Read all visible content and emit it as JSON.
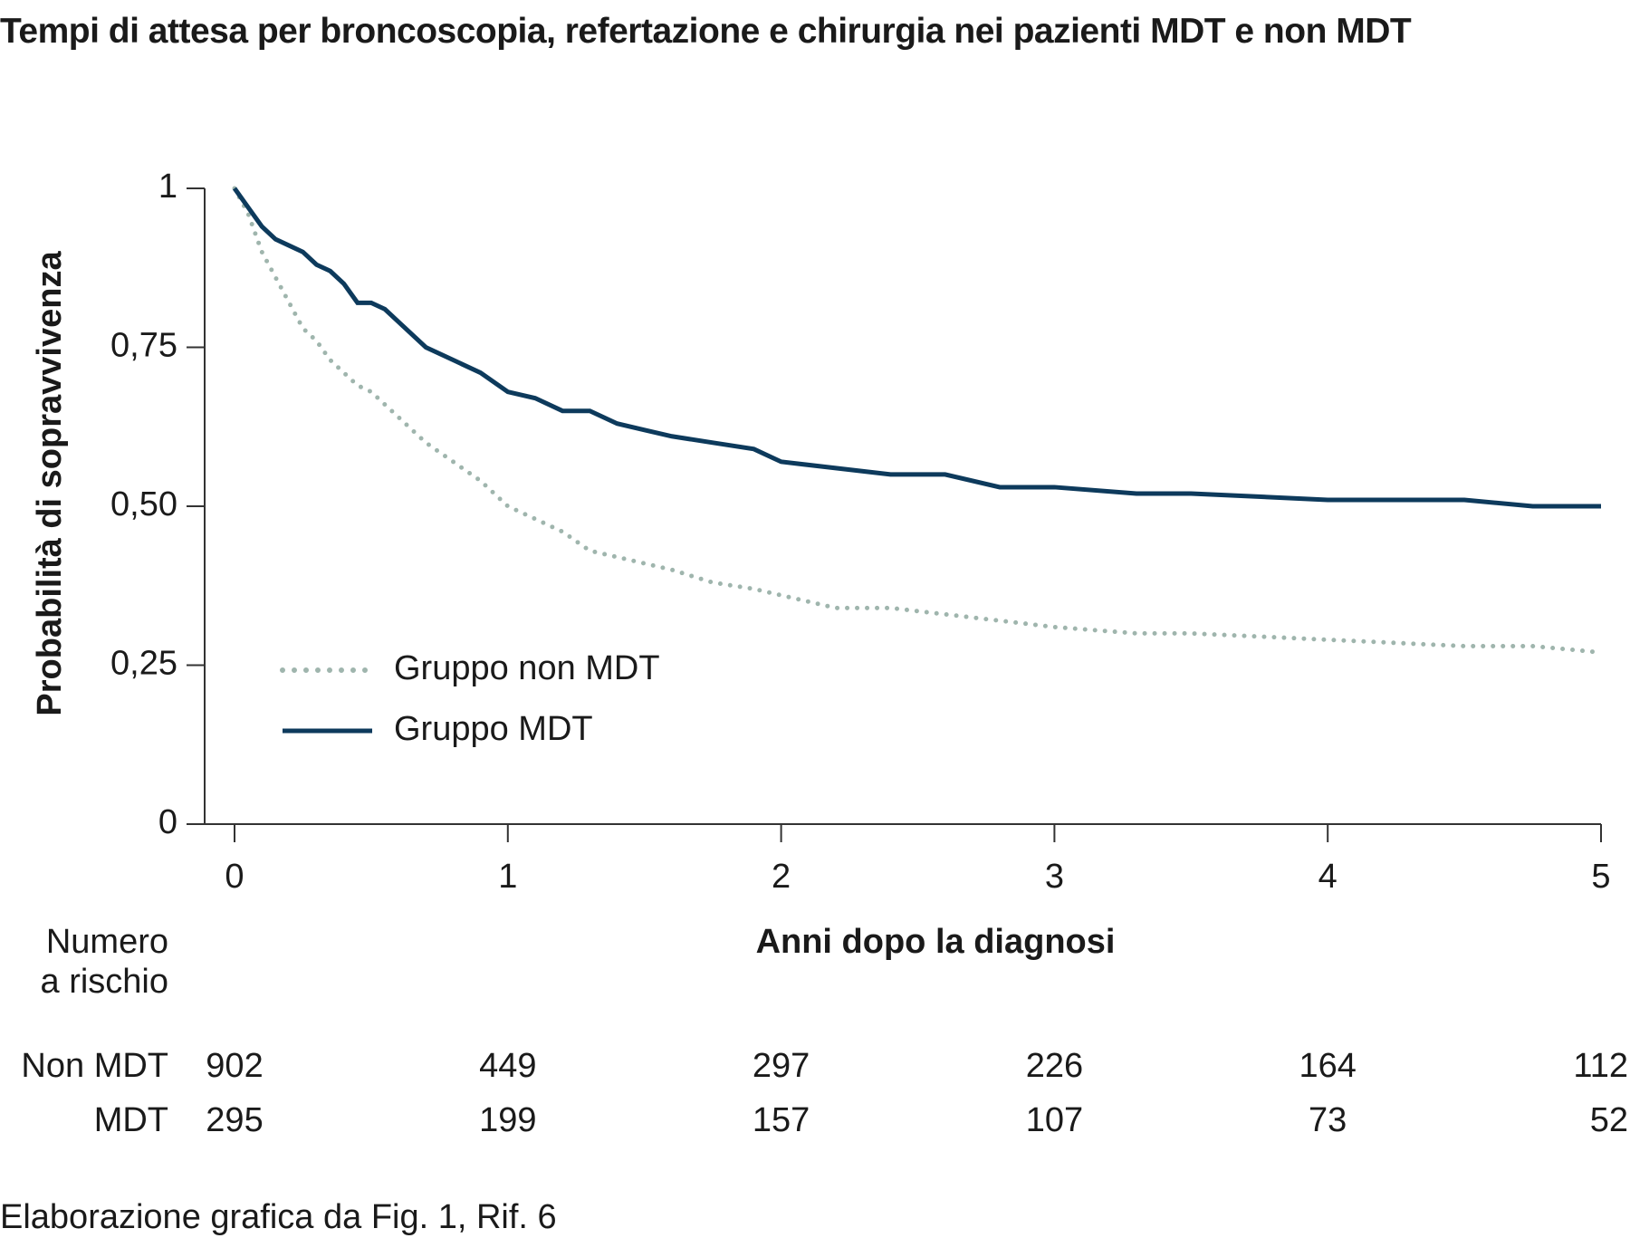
{
  "chart_data": {
    "type": "line",
    "title": "Tempi di attesa per broncoscopia, refertazione e chirurgia nei pazienti MDT e non MDT",
    "x_label": "Anni dopo la diagnosi",
    "y_label": "Probabilità di sopravvivenza",
    "x": [
      0,
      0.05,
      0.1,
      0.15,
      0.2,
      0.25,
      0.3,
      0.35,
      0.4,
      0.45,
      0.5,
      0.55,
      0.6,
      0.7,
      0.8,
      0.9,
      1.0,
      1.1,
      1.2,
      1.3,
      1.4,
      1.5,
      1.6,
      1.75,
      1.9,
      2.0,
      2.2,
      2.4,
      2.6,
      2.8,
      3.0,
      3.3,
      3.5,
      4.0,
      4.5,
      4.75,
      5.0
    ],
    "series": [
      {
        "name": "Gruppo non MDT",
        "color": "#9fb5ad",
        "style": "dotted",
        "values": [
          1.0,
          0.96,
          0.9,
          0.86,
          0.82,
          0.78,
          0.76,
          0.73,
          0.71,
          0.69,
          0.68,
          0.66,
          0.64,
          0.6,
          0.57,
          0.54,
          0.5,
          0.48,
          0.46,
          0.43,
          0.42,
          0.41,
          0.4,
          0.38,
          0.37,
          0.36,
          0.34,
          0.34,
          0.33,
          0.32,
          0.31,
          0.3,
          0.3,
          0.29,
          0.28,
          0.28,
          0.27
        ]
      },
      {
        "name": "Gruppo MDT",
        "color": "#0d3a5c",
        "style": "solid",
        "values": [
          1.0,
          0.97,
          0.94,
          0.92,
          0.91,
          0.9,
          0.88,
          0.87,
          0.85,
          0.82,
          0.82,
          0.81,
          0.79,
          0.75,
          0.73,
          0.71,
          0.68,
          0.67,
          0.65,
          0.65,
          0.63,
          0.62,
          0.61,
          0.6,
          0.59,
          0.57,
          0.56,
          0.55,
          0.55,
          0.53,
          0.53,
          0.52,
          0.52,
          0.51,
          0.51,
          0.5,
          0.5
        ]
      }
    ],
    "xlim": [
      0,
      5
    ],
    "xticks": [
      0,
      1,
      2,
      3,
      4,
      5
    ],
    "ylim": [
      0,
      1
    ],
    "yticks": [
      0,
      {
        "value": 0.25,
        "label": "0,25"
      },
      {
        "value": 0.5,
        "label": "0,50"
      },
      {
        "value": 0.75,
        "label": "0,75"
      },
      1
    ],
    "risk_table": {
      "title": [
        "Numero",
        "a rischio"
      ],
      "rows": [
        {
          "name": "Non MDT",
          "values": [
            902,
            449,
            297,
            226,
            164,
            112
          ]
        },
        {
          "name": "MDT",
          "values": [
            295,
            199,
            157,
            107,
            73,
            52
          ]
        }
      ]
    },
    "note": "Elaborazione grafica da Fig. 1, Rif. 6"
  }
}
